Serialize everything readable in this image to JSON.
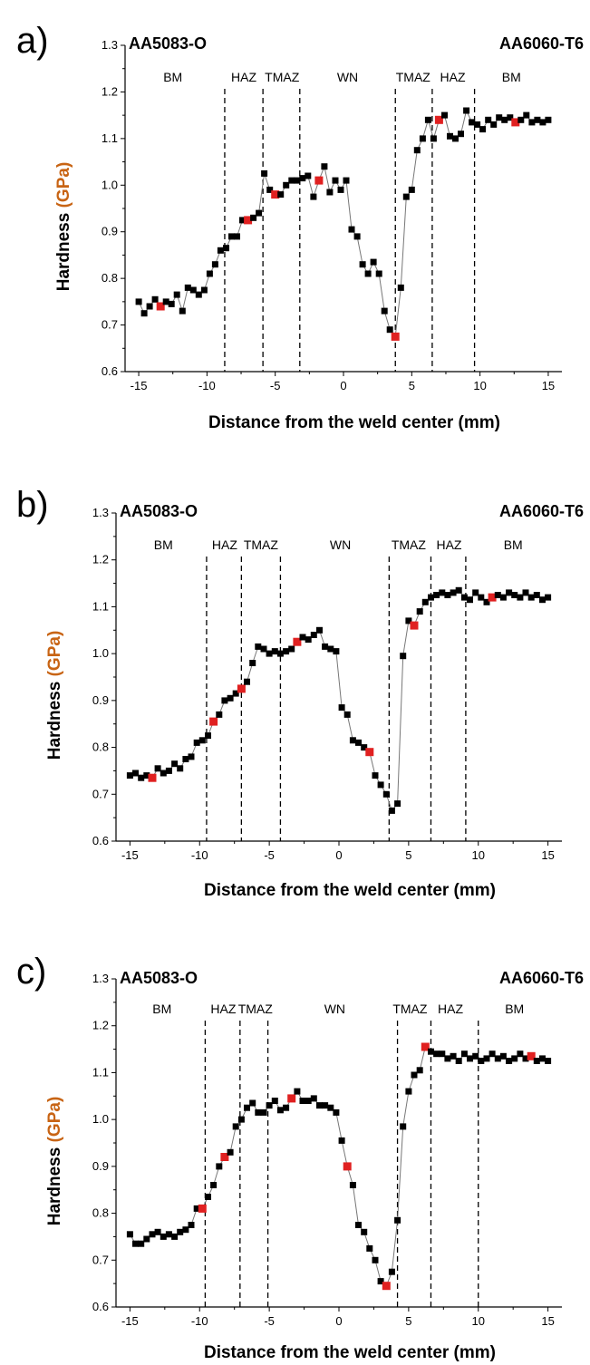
{
  "colors": {
    "normal": "#000000",
    "highlight": "#e02020",
    "line": "#777777",
    "unit": "#c86414"
  },
  "chart_data": [
    {
      "type": "scatter",
      "panel": "a)",
      "left_alloy": "AA5083-O",
      "right_alloy": "AA6060-T6",
      "xlabel": "Distance from the weld center (mm)",
      "ylabel_main": "Hardness ",
      "ylabel_unit": "(GPa)",
      "xlim": [
        -16,
        16
      ],
      "ylim": [
        0.6,
        1.3
      ],
      "xticks": [
        -15,
        -10,
        -5,
        0,
        5,
        10,
        15
      ],
      "yticks": [
        0.6,
        0.7,
        0.8,
        0.9,
        1.0,
        1.1,
        1.2,
        1.3
      ],
      "ytick_labels": [
        "0.6",
        "0.7",
        "0.8",
        "0.9",
        "1.0",
        "1.1",
        "1.2",
        "1.3"
      ],
      "boundaries": [
        -8.7,
        -5.9,
        -3.2,
        3.8,
        6.5,
        9.6
      ],
      "zones": [
        {
          "label": "BM",
          "x": -12.5
        },
        {
          "label": "HAZ",
          "x": -7.3
        },
        {
          "label": "TMAZ",
          "x": -4.5
        },
        {
          "label": "WN",
          "x": 0.3
        },
        {
          "label": "TMAZ",
          "x": 5.1
        },
        {
          "label": "HAZ",
          "x": 8.0
        },
        {
          "label": "BM",
          "x": 12.3
        }
      ],
      "x": [
        -15,
        -14.6,
        -14.2,
        -13.8,
        -13.4,
        -13.0,
        -12.6,
        -12.2,
        -11.8,
        -11.4,
        -11.0,
        -10.6,
        -10.2,
        -9.8,
        -9.4,
        -9.0,
        -8.6,
        -8.2,
        -7.8,
        -7.4,
        -7.0,
        -6.6,
        -6.2,
        -5.8,
        -5.4,
        -5.0,
        -4.6,
        -4.2,
        -3.8,
        -3.4,
        -3.0,
        -2.6,
        -2.2,
        -1.8,
        -1.4,
        -1.0,
        -0.6,
        -0.2,
        0.2,
        0.6,
        1.0,
        1.4,
        1.8,
        2.2,
        2.6,
        3.0,
        3.4,
        3.8,
        4.2,
        4.6,
        5.0,
        5.4,
        5.8,
        6.2,
        6.6,
        7.0,
        7.4,
        7.8,
        8.2,
        8.6,
        9.0,
        9.4,
        9.8,
        10.2,
        10.6,
        11.0,
        11.4,
        11.8,
        12.2,
        12.6,
        13.0,
        13.4,
        13.8,
        14.2,
        14.6,
        15.0
      ],
      "y": [
        0.75,
        0.725,
        0.74,
        0.755,
        0.74,
        0.75,
        0.745,
        0.765,
        0.73,
        0.78,
        0.775,
        0.765,
        0.775,
        0.81,
        0.83,
        0.86,
        0.865,
        0.89,
        0.89,
        0.925,
        0.925,
        0.93,
        0.94,
        1.025,
        0.99,
        0.98,
        0.98,
        1.0,
        1.01,
        1.01,
        1.015,
        1.02,
        0.975,
        1.01,
        1.04,
        0.985,
        1.01,
        0.99,
        1.01,
        0.905,
        0.89,
        0.83,
        0.81,
        0.835,
        0.81,
        0.73,
        0.69,
        0.675,
        0.78,
        0.975,
        0.99,
        1.075,
        1.1,
        1.14,
        1.1,
        1.14,
        1.15,
        1.105,
        1.1,
        1.11,
        1.16,
        1.135,
        1.13,
        1.12,
        1.14,
        1.13,
        1.145,
        1.14,
        1.145,
        1.135,
        1.14,
        1.15,
        1.135,
        1.14,
        1.135,
        1.14
      ],
      "highlight_idx": [
        4,
        20,
        25,
        33,
        47,
        55,
        69
      ]
    },
    {
      "type": "scatter",
      "panel": "b)",
      "left_alloy": "AA5083-O",
      "right_alloy": "AA6060-T6",
      "xlabel": "Distance from the weld center (mm)",
      "ylabel_main": "Hardness ",
      "ylabel_unit": "(GPa)",
      "xlim": [
        -16,
        16
      ],
      "ylim": [
        0.6,
        1.3
      ],
      "xticks": [
        -15,
        -10,
        -5,
        0,
        5,
        10,
        15
      ],
      "yticks": [
        0.6,
        0.7,
        0.8,
        0.9,
        1.0,
        1.1,
        1.2,
        1.3
      ],
      "ytick_labels": [
        "0.6",
        "0.7",
        "0.8",
        "0.9",
        "1.0",
        "1.1",
        "1.2",
        "1.3"
      ],
      "boundaries": [
        -9.5,
        -7.0,
        -4.2,
        3.6,
        6.6,
        9.1
      ],
      "zones": [
        {
          "label": "BM",
          "x": -12.6
        },
        {
          "label": "HAZ",
          "x": -8.2
        },
        {
          "label": "TMAZ",
          "x": -5.6
        },
        {
          "label": "WN",
          "x": 0.1
        },
        {
          "label": "TMAZ",
          "x": 5.0
        },
        {
          "label": "HAZ",
          "x": 7.9
        },
        {
          "label": "BM",
          "x": 12.5
        }
      ],
      "x": [
        -15,
        -14.6,
        -14.2,
        -13.8,
        -13.4,
        -13.0,
        -12.6,
        -12.2,
        -11.8,
        -11.4,
        -11.0,
        -10.6,
        -10.2,
        -9.8,
        -9.4,
        -9.0,
        -8.6,
        -8.2,
        -7.8,
        -7.4,
        -7.0,
        -6.6,
        -6.2,
        -5.8,
        -5.4,
        -5.0,
        -4.6,
        -4.2,
        -3.8,
        -3.4,
        -3.0,
        -2.6,
        -2.2,
        -1.8,
        -1.4,
        -1.0,
        -0.6,
        -0.2,
        0.2,
        0.6,
        1.0,
        1.4,
        1.8,
        2.2,
        2.6,
        3.0,
        3.4,
        3.8,
        4.2,
        4.6,
        5.0,
        5.4,
        5.8,
        6.2,
        6.6,
        7.0,
        7.4,
        7.8,
        8.2,
        8.6,
        9.0,
        9.4,
        9.8,
        10.2,
        10.6,
        11.0,
        11.4,
        11.8,
        12.2,
        12.6,
        13.0,
        13.4,
        13.8,
        14.2,
        14.6,
        15.0
      ],
      "y": [
        0.74,
        0.745,
        0.735,
        0.74,
        0.735,
        0.755,
        0.745,
        0.75,
        0.765,
        0.755,
        0.775,
        0.78,
        0.81,
        0.815,
        0.825,
        0.855,
        0.87,
        0.9,
        0.905,
        0.915,
        0.925,
        0.94,
        0.98,
        1.015,
        1.01,
        1.0,
        1.005,
        1.0,
        1.005,
        1.01,
        1.025,
        1.035,
        1.03,
        1.04,
        1.05,
        1.015,
        1.01,
        1.005,
        0.885,
        0.87,
        0.815,
        0.81,
        0.8,
        0.79,
        0.74,
        0.72,
        0.7,
        0.665,
        0.68,
        0.995,
        1.07,
        1.06,
        1.09,
        1.11,
        1.12,
        1.125,
        1.13,
        1.125,
        1.13,
        1.135,
        1.12,
        1.115,
        1.13,
        1.12,
        1.11,
        1.12,
        1.125,
        1.12,
        1.13,
        1.125,
        1.12,
        1.13,
        1.12,
        1.125,
        1.115,
        1.12
      ],
      "highlight_idx": [
        4,
        15,
        20,
        30,
        43,
        51,
        65
      ]
    },
    {
      "type": "scatter",
      "panel": "c)",
      "left_alloy": "AA5083-O",
      "right_alloy": "AA6060-T6",
      "xlabel": "Distance from the weld center (mm)",
      "ylabel_main": "Hardness ",
      "ylabel_unit": "(GPa)",
      "xlim": [
        -16,
        16
      ],
      "ylim": [
        0.6,
        1.3
      ],
      "xticks": [
        -15,
        -10,
        -5,
        0,
        5,
        10,
        15
      ],
      "yticks": [
        0.6,
        0.7,
        0.8,
        0.9,
        1.0,
        1.1,
        1.2,
        1.3
      ],
      "ytick_labels": [
        "0.6",
        "0.7",
        "0.8",
        "0.9",
        "1.0",
        "1.1",
        "1.2",
        "1.3"
      ],
      "boundaries": [
        -9.6,
        -7.1,
        -5.1,
        4.2,
        6.6,
        10.0
      ],
      "zones": [
        {
          "label": "BM",
          "x": -12.7
        },
        {
          "label": "HAZ",
          "x": -8.3
        },
        {
          "label": "TMAZ",
          "x": -6.0
        },
        {
          "label": "WN",
          "x": -0.3
        },
        {
          "label": "TMAZ",
          "x": 5.1
        },
        {
          "label": "HAZ",
          "x": 8.0
        },
        {
          "label": "BM",
          "x": 12.6
        }
      ],
      "x": [
        -15,
        -14.6,
        -14.2,
        -13.8,
        -13.4,
        -13.0,
        -12.6,
        -12.2,
        -11.8,
        -11.4,
        -11.0,
        -10.6,
        -10.2,
        -9.8,
        -9.4,
        -9.0,
        -8.6,
        -8.2,
        -7.8,
        -7.4,
        -7.0,
        -6.6,
        -6.2,
        -5.8,
        -5.4,
        -5.0,
        -4.6,
        -4.2,
        -3.8,
        -3.4,
        -3.0,
        -2.6,
        -2.2,
        -1.8,
        -1.4,
        -1.0,
        -0.6,
        -0.2,
        0.2,
        0.6,
        1.0,
        1.4,
        1.8,
        2.2,
        2.6,
        3.0,
        3.4,
        3.8,
        4.2,
        4.6,
        5.0,
        5.4,
        5.8,
        6.2,
        6.6,
        7.0,
        7.4,
        7.8,
        8.2,
        8.6,
        9.0,
        9.4,
        9.8,
        10.2,
        10.6,
        11.0,
        11.4,
        11.8,
        12.2,
        12.6,
        13.0,
        13.4,
        13.8,
        14.2,
        14.6,
        15.0
      ],
      "y": [
        0.755,
        0.735,
        0.735,
        0.745,
        0.755,
        0.76,
        0.75,
        0.755,
        0.75,
        0.76,
        0.765,
        0.775,
        0.81,
        0.81,
        0.835,
        0.86,
        0.9,
        0.92,
        0.93,
        0.985,
        1.0,
        1.025,
        1.035,
        1.015,
        1.015,
        1.03,
        1.04,
        1.02,
        1.025,
        1.045,
        1.06,
        1.04,
        1.04,
        1.045,
        1.03,
        1.03,
        1.025,
        1.015,
        0.955,
        0.9,
        0.86,
        0.775,
        0.76,
        0.725,
        0.7,
        0.655,
        0.645,
        0.675,
        0.785,
        0.985,
        1.06,
        1.095,
        1.105,
        1.155,
        1.145,
        1.14,
        1.14,
        1.13,
        1.135,
        1.125,
        1.14,
        1.13,
        1.135,
        1.125,
        1.13,
        1.14,
        1.13,
        1.135,
        1.125,
        1.13,
        1.14,
        1.13,
        1.135,
        1.125,
        1.13,
        1.125
      ],
      "highlight_idx": [
        13,
        17,
        29,
        39,
        46,
        53,
        72
      ]
    }
  ]
}
